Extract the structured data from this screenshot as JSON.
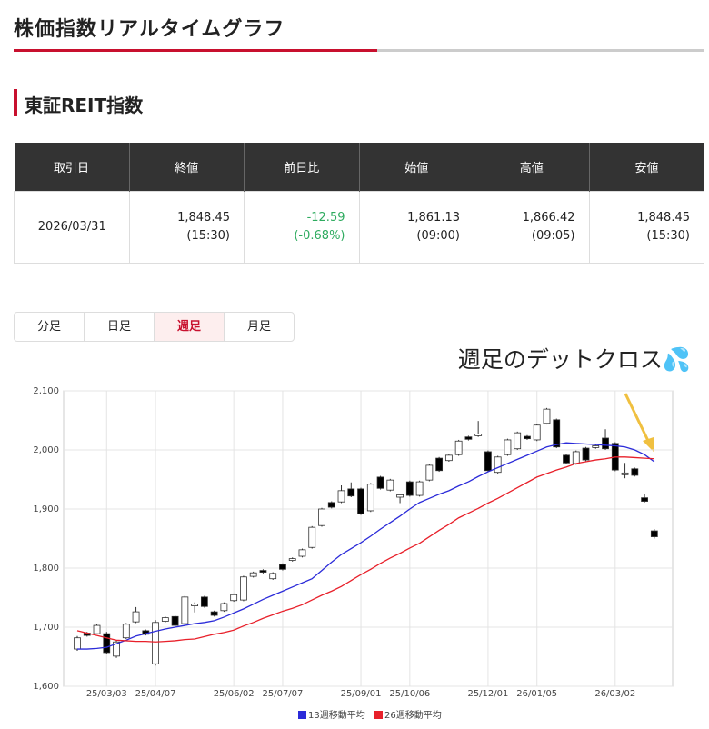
{
  "header": {
    "title": "株価指数リアルタイムグラフ"
  },
  "section": {
    "title": "東証REIT指数"
  },
  "table": {
    "headers": [
      "取引日",
      "終値",
      "前日比",
      "始値",
      "高値",
      "安値"
    ],
    "rows": [
      [
        [
          "2026/03/31"
        ],
        [
          "1,848.45",
          "(15:30)"
        ],
        [
          "-12.59",
          "(-0.68%)"
        ],
        [
          "1,861.13",
          "(09:00)"
        ],
        [
          "1,866.42",
          "(09:05)"
        ],
        [
          "1,848.45",
          "(15:30)"
        ]
      ]
    ]
  },
  "tabs": [
    {
      "label": "分足",
      "active": false
    },
    {
      "label": "日足",
      "active": false
    },
    {
      "label": "週足",
      "active": true
    },
    {
      "label": "月足",
      "active": false
    }
  ],
  "annotation": "週足のデットクロス💦",
  "chart_data": {
    "type": "candlestick",
    "categories": [
      null,
      null,
      null,
      "25/03/03",
      null,
      null,
      null,
      null,
      "25/04/07",
      null,
      null,
      null,
      null,
      null,
      null,
      null,
      "25/06/02",
      null,
      null,
      null,
      null,
      "25/07/07",
      null,
      null,
      null,
      null,
      null,
      null,
      null,
      "25/09/01",
      null,
      null,
      null,
      null,
      "25/10/06",
      null,
      null,
      null,
      null,
      null,
      null,
      null,
      "25/12/01",
      null,
      null,
      null,
      null,
      "26/01/05",
      null,
      null,
      null,
      null,
      null,
      null,
      null,
      "26/03/02",
      null,
      null,
      null,
      null
    ],
    "open": [
      1663,
      1690,
      1689,
      1689,
      1651,
      1682,
      1709,
      1694,
      1638,
      1710,
      1718,
      1706,
      1736,
      1751,
      1726,
      1728,
      1745,
      1746,
      1786,
      1796,
      1782,
      1806,
      1813,
      1820,
      1835,
      1872,
      1911,
      1912,
      1934,
      1934,
      1897,
      1954,
      1932,
      1920,
      1946,
      1923,
      1949,
      1986,
      1982,
      1992,
      2022,
      2024,
      1997,
      1962,
      1992,
      2002,
      2023,
      2017,
      2045,
      2051,
      1991,
      1977,
      2003,
      2004,
      2020,
      2011,
      1958,
      1968,
      1919,
      1863
    ],
    "high": [
      1685,
      1692,
      1705,
      1692,
      1677,
      1707,
      1734,
      1696,
      1712,
      1718,
      1720,
      1753,
      1742,
      1753,
      1728,
      1742,
      1757,
      1787,
      1794,
      1798,
      1793,
      1808,
      1818,
      1833,
      1871,
      1902,
      1913,
      1940,
      1945,
      1936,
      1944,
      1956,
      1951,
      1926,
      1948,
      1948,
      1976,
      1988,
      1993,
      2017,
      2024,
      2049,
      1999,
      1990,
      2019,
      2031,
      2025,
      2044,
      2071,
      2053,
      1993,
      1999,
      2005,
      2009,
      2035,
      2013,
      1978,
      1970,
      1925,
      1866
    ],
    "low": [
      1660,
      1684,
      1688,
      1654,
      1648,
      1680,
      1707,
      1686,
      1635,
      1708,
      1701,
      1704,
      1725,
      1733,
      1718,
      1726,
      1743,
      1744,
      1784,
      1791,
      1780,
      1796,
      1811,
      1818,
      1833,
      1870,
      1901,
      1910,
      1920,
      1890,
      1895,
      1933,
      1930,
      1910,
      1921,
      1921,
      1947,
      1963,
      1980,
      1990,
      2016,
      2022,
      1963,
      1960,
      1990,
      2000,
      2017,
      2015,
      2043,
      2003,
      1976,
      1975,
      1981,
      2002,
      2000,
      1964,
      1952,
      1955,
      1911,
      1850
    ],
    "close": [
      1682,
      1686,
      1703,
      1657,
      1675,
      1705,
      1726,
      1688,
      1708,
      1716,
      1703,
      1751,
      1739,
      1735,
      1720,
      1740,
      1755,
      1785,
      1792,
      1793,
      1791,
      1798,
      1816,
      1831,
      1869,
      1900,
      1903,
      1931,
      1922,
      1892,
      1942,
      1935,
      1949,
      1924,
      1923,
      1946,
      1974,
      1965,
      1991,
      2015,
      2018,
      2027,
      1965,
      1988,
      2017,
      2029,
      2019,
      2042,
      2069,
      2005,
      1978,
      1997,
      1983,
      2007,
      2002,
      1966,
      1961,
      1957,
      1913,
      1853
    ],
    "up_color": "#ffffff",
    "down_color": "#000000",
    "series": [
      {
        "name": "13週移動平均",
        "color": "#2b2bd9",
        "values": [
          1663,
          1663,
          1664,
          1666,
          1672,
          1678,
          1685,
          1689,
          1693,
          1697,
          1700,
          1703,
          1706,
          1708,
          1711,
          1717,
          1724,
          1731,
          1739,
          1747,
          1754,
          1761,
          1768,
          1775,
          1782,
          1796,
          1810,
          1823,
          1833,
          1843,
          1854,
          1866,
          1877,
          1888,
          1900,
          1911,
          1918,
          1925,
          1931,
          1939,
          1946,
          1955,
          1963,
          1970,
          1977,
          1984,
          1991,
          1998,
          2005,
          2009,
          2012,
          2011,
          2010,
          2009,
          2008,
          2007,
          2005,
          2000,
          1992,
          1980
        ]
      },
      {
        "name": "26週移動平均",
        "color": "#e8202a",
        "values": [
          1694,
          1690,
          1686,
          1682,
          1678,
          1677,
          1676,
          1676,
          1675,
          1676,
          1677,
          1679,
          1680,
          1684,
          1688,
          1691,
          1695,
          1702,
          1708,
          1715,
          1721,
          1727,
          1732,
          1738,
          1746,
          1754,
          1761,
          1769,
          1779,
          1789,
          1798,
          1808,
          1817,
          1825,
          1834,
          1842,
          1853,
          1864,
          1874,
          1885,
          1893,
          1901,
          1910,
          1918,
          1927,
          1936,
          1945,
          1954,
          1960,
          1966,
          1971,
          1977,
          1980,
          1983,
          1985,
          1988,
          1988,
          1987,
          1986,
          1985
        ]
      }
    ],
    "ylim": [
      1600,
      2100
    ],
    "yticks": [
      {
        "value": 1600,
        "label": "1,600"
      },
      {
        "value": 1700,
        "label": "1,700"
      },
      {
        "value": 1800,
        "label": "1,800"
      },
      {
        "value": 1900,
        "label": "1,900"
      },
      {
        "value": 2000,
        "label": "2,000"
      },
      {
        "value": 2100,
        "label": "2,100"
      }
    ],
    "grid": true
  }
}
